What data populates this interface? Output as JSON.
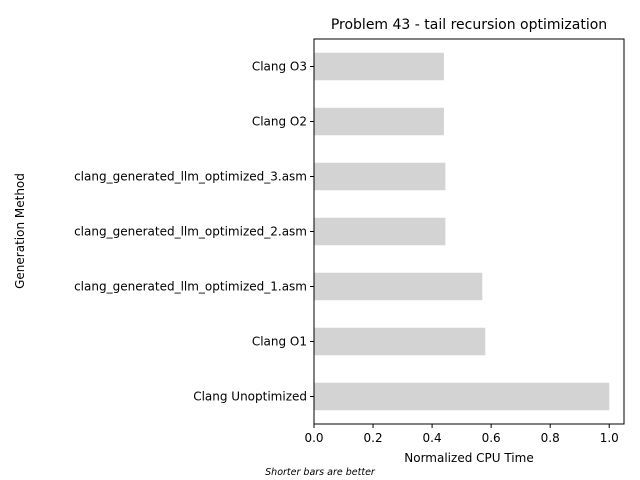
{
  "chart_data": {
    "type": "bar",
    "orientation": "horizontal",
    "title": "Problem 43 - tail recursion optimization",
    "xlabel": "Normalized CPU Time",
    "ylabel": "Generation Method",
    "footnote": "Shorter bars are better",
    "categories": [
      "Clang Unoptimized",
      "Clang O1",
      "clang_generated_llm_optimized_1.asm",
      "clang_generated_llm_optimized_2.asm",
      "clang_generated_llm_optimized_3.asm",
      "Clang O2",
      "Clang O3"
    ],
    "values": [
      1.0,
      0.58,
      0.57,
      0.445,
      0.445,
      0.44,
      0.44
    ],
    "xlim": [
      0,
      1.05
    ],
    "xticks": [
      "0.0",
      "0.2",
      "0.4",
      "0.6",
      "0.8",
      "1.0"
    ],
    "bar_color": "#d3d3d3",
    "grid": false,
    "legend": "none"
  }
}
